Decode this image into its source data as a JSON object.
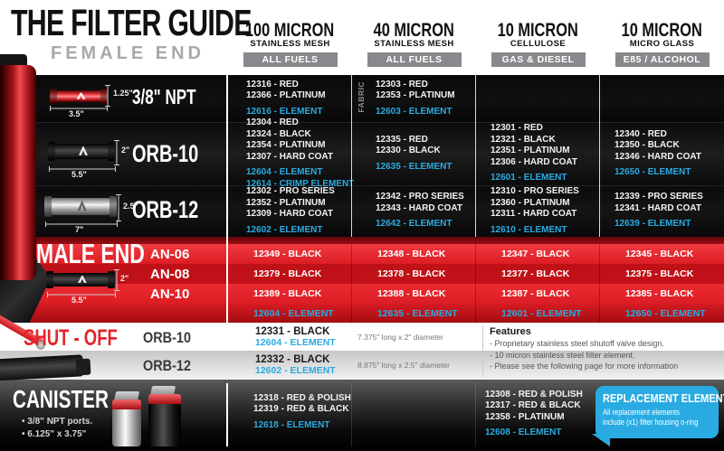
{
  "header": {
    "title": "THE FILTER GUIDE",
    "female_label": "FEMALE END",
    "columns": [
      {
        "micron": "100 MICRON",
        "media": "STAINLESS MESH",
        "fuel": "ALL FUELS"
      },
      {
        "micron": "40 MICRON",
        "media": "STAINLESS MESH",
        "fuel": "ALL FUELS"
      },
      {
        "micron": "10 MICRON",
        "media": "CELLULOSE",
        "fuel": "GAS & DIESEL"
      },
      {
        "micron": "10 MICRON",
        "media": "MICRO GLASS",
        "fuel": "E85 / ALCOHOL"
      }
    ]
  },
  "female": {
    "rows": [
      {
        "label": "3/8\" NPT",
        "height_dim": "1.25\"",
        "length_dim": "3.5\"",
        "cells": [
          {
            "parts": [
              "12316 - RED",
              "12366 - PLATINUM"
            ],
            "elements": [
              "12616 - ELEMENT"
            ]
          },
          {
            "side_note": "FABRIC",
            "parts": [
              "12303 - RED",
              "12353 - PLATINUM"
            ],
            "elements": [
              "12603 - ELEMENT"
            ]
          },
          {
            "parts": [],
            "elements": []
          },
          {
            "parts": [],
            "elements": []
          }
        ]
      },
      {
        "label": "ORB-10",
        "height_dim": "2\"",
        "length_dim": "5.5\"",
        "cells": [
          {
            "parts": [
              "12304 - RED",
              "12324 - BLACK",
              "12354 - PLATINUM",
              "12307 - HARD COAT"
            ],
            "elements": [
              "12604 - ELEMENT",
              "12614 - CRIMP ELEMENT"
            ]
          },
          {
            "parts": [
              "12335 - RED",
              "12330 - BLACK"
            ],
            "elements": [
              "12635 - ELEMENT"
            ]
          },
          {
            "parts": [
              "12301 - RED",
              "12321 - BLACK",
              "12351 - PLATINUM",
              "12306 - HARD COAT"
            ],
            "elements": [
              "12601 - ELEMENT"
            ]
          },
          {
            "parts": [
              "12340 - RED",
              "12350 - BLACK",
              "12346 - HARD COAT"
            ],
            "elements": [
              "12650 - ELEMENT"
            ]
          }
        ]
      },
      {
        "label": "ORB-12",
        "height_dim": "2.5\"",
        "length_dim": "7\"",
        "cells": [
          {
            "parts": [
              "12302 - PRO SERIES",
              "12352 - PLATINUM",
              "12309 - HARD COAT"
            ],
            "elements": [
              "12602 - ELEMENT"
            ]
          },
          {
            "parts": [
              "12342 - PRO SERIES",
              "12343 - HARD COAT"
            ],
            "elements": [
              "12642 - ELEMENT"
            ]
          },
          {
            "parts": [
              "12310 - PRO SERIES",
              "12360 - PLATINUM",
              "12311 - HARD COAT"
            ],
            "elements": [
              "12610 - ELEMENT"
            ]
          },
          {
            "parts": [
              "12339 - PRO SERIES",
              "12341 - HARD COAT"
            ],
            "elements": [
              "12639 - ELEMENT"
            ]
          }
        ]
      }
    ]
  },
  "male": {
    "label": "MALE END",
    "height_dim": "2\"",
    "length_dim": "5.5\"",
    "row_labels": [
      "AN-06",
      "AN-08",
      "AN-10"
    ],
    "rows": [
      [
        "12349 - BLACK",
        "12348 - BLACK",
        "12347 - BLACK",
        "12345 - BLACK"
      ],
      [
        "12379 - BLACK",
        "12378 - BLACK",
        "12377 - BLACK",
        "12375 - BLACK"
      ],
      [
        "12389 - BLACK",
        "12388 - BLACK",
        "12387 - BLACK",
        "12385 - BLACK"
      ]
    ],
    "elements": [
      "12604 - ELEMENT",
      "12635 - ELEMENT",
      "12601 - ELEMENT",
      "12650 - ELEMENT"
    ]
  },
  "shutoff": {
    "label": "SHUT - OFF",
    "rows": [
      {
        "port": "ORB-10",
        "part": "12331 - BLACK",
        "element": "12604 - ELEMENT",
        "size": "7.375\" long x 2\" diameter"
      },
      {
        "port": "ORB-12",
        "part": "12332 - BLACK",
        "element": "12602 - ELEMENT",
        "size": "8.875\" long x 2.5\" diameter"
      }
    ],
    "features": {
      "title": "Features",
      "items": [
        "- Proprietary stainless steel shutoff valve design.",
        "- 10 micron stainless steel filter element.",
        "- Please see the following page for more information"
      ]
    }
  },
  "canister": {
    "label": "CANISTER",
    "bullets": [
      "• 3/8\" NPT ports.",
      "• 6.125\" x 3.75\""
    ],
    "cells": [
      {
        "parts": [
          "12318 - RED & POLISH",
          "12319 - RED & BLACK"
        ],
        "elements": [
          "12618 - ELEMENT"
        ]
      },
      {
        "parts": [
          "12308 - RED & POLISH",
          "12317 - RED & BLACK",
          "12358 - PLATINUM"
        ],
        "elements": [
          "12608 - ELEMENT"
        ]
      }
    ],
    "callout": {
      "title": "REPLACEMENT ELEMENTS",
      "body_lines": [
        "All replacement elements",
        "include (x1) filter housing o-ring"
      ]
    }
  }
}
